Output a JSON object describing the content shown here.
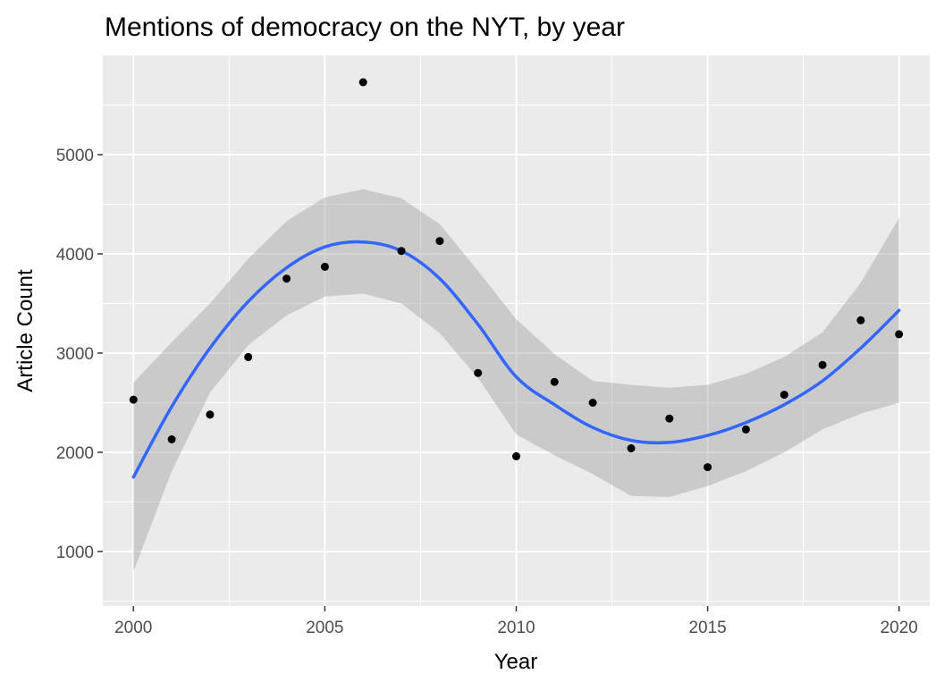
{
  "chart_data": {
    "type": "scatter",
    "title": "Mentions of democracy on the NYT, by year",
    "xlabel": "Year",
    "ylabel": "Article Count",
    "xlim": [
      1999.2,
      2020.8
    ],
    "ylim": [
      450,
      6000
    ],
    "x_ticks": [
      2000,
      2005,
      2010,
      2015,
      2020
    ],
    "y_ticks": [
      1000,
      2000,
      3000,
      4000,
      5000
    ],
    "grid": true,
    "legend": "none",
    "colors": {
      "panel_background": "#EBEBEB",
      "grid": "#FFFFFF",
      "points": "#000000",
      "smooth_line": "#3366FF",
      "confidence_band": "#999999"
    },
    "points": {
      "x": [
        2000,
        2001,
        2002,
        2003,
        2004,
        2005,
        2006,
        2007,
        2008,
        2009,
        2010,
        2011,
        2012,
        2013,
        2014,
        2015,
        2016,
        2017,
        2018,
        2019,
        2020
      ],
      "y": [
        2530,
        2130,
        2380,
        2960,
        3750,
        3870,
        5730,
        4030,
        4130,
        2800,
        1960,
        2710,
        2500,
        2040,
        2340,
        1850,
        2230,
        2580,
        2880,
        3330,
        3190
      ]
    },
    "smooth": {
      "x": [
        2000,
        2001,
        2002,
        2003,
        2004,
        2005,
        2006,
        2007,
        2008,
        2009,
        2010,
        2011,
        2012,
        2013,
        2014,
        2015,
        2016,
        2017,
        2018,
        2019,
        2020
      ],
      "y": [
        1750,
        2460,
        3050,
        3520,
        3860,
        4070,
        4120,
        4030,
        3750,
        3290,
        2760,
        2480,
        2250,
        2120,
        2100,
        2170,
        2300,
        2480,
        2720,
        3050,
        3430
      ],
      "ymin": [
        800,
        1810,
        2600,
        3080,
        3380,
        3570,
        3600,
        3500,
        3200,
        2750,
        2180,
        1970,
        1780,
        1560,
        1550,
        1660,
        1810,
        2000,
        2230,
        2390,
        2500
      ],
      "ymax": [
        2700,
        3110,
        3500,
        3950,
        4330,
        4570,
        4650,
        4560,
        4300,
        3830,
        3340,
        2990,
        2720,
        2680,
        2650,
        2680,
        2790,
        2960,
        3210,
        3710,
        4360
      ]
    }
  }
}
